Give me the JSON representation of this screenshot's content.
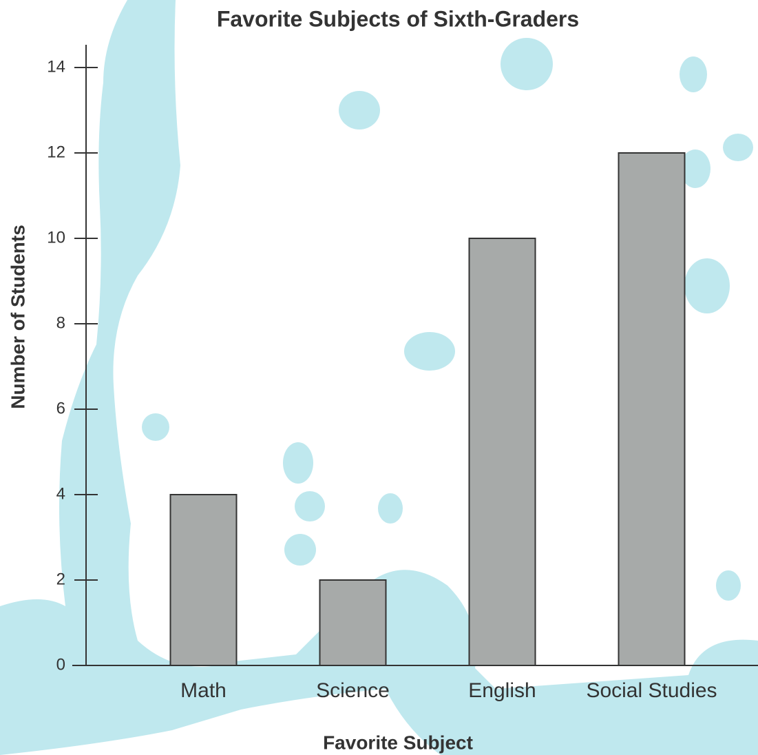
{
  "chart_data": {
    "type": "bar",
    "title": "Favorite Subjects of Sixth-Graders",
    "x_label": "Favorite Subject",
    "y_label": "Number of Students",
    "categories": [
      "Math",
      "Science",
      "English",
      "Social Studies"
    ],
    "values": [
      4,
      2,
      10,
      12
    ],
    "color": "#a7aaa9",
    "ylim": [
      0,
      14
    ],
    "yticks": [
      0,
      2,
      4,
      6,
      8,
      10,
      12,
      14
    ],
    "grid": false
  }
}
